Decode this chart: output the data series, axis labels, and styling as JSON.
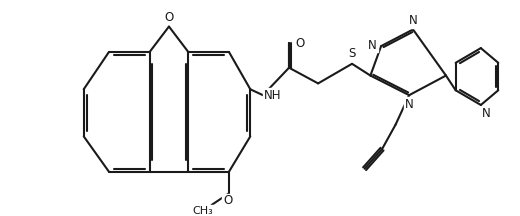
{
  "bg": "#ffffff",
  "lc": "#1a1a1a",
  "lw": 1.5,
  "fs": 8.5,
  "fig_w": 5.2,
  "fig_h": 2.16,
  "dpi": 100,
  "xlim": [
    0,
    10
  ],
  "ylim": [
    0,
    4.16
  ]
}
